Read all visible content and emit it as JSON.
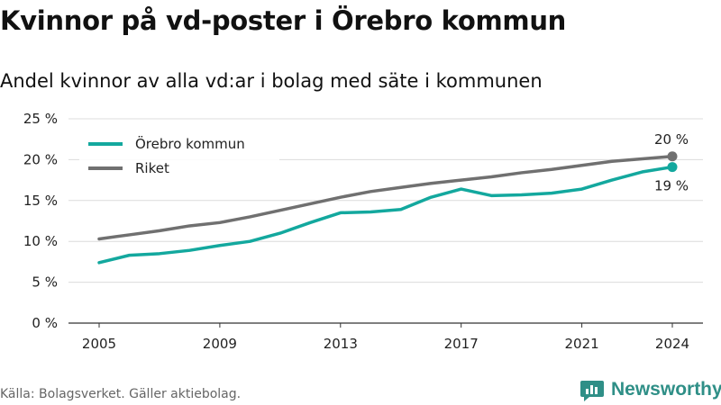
{
  "title": "Kvinnor på vd-poster i Örebro kommun",
  "subtitle": "Andel kvinnor av alla vd:ar i bolag med säte i kommunen",
  "source": "Källa: Bolagsverket. Gäller aktiebolag.",
  "brand": "Newsworthy",
  "chart_data": {
    "type": "line",
    "x": [
      2005,
      2006,
      2007,
      2008,
      2009,
      2010,
      2011,
      2012,
      2013,
      2014,
      2015,
      2016,
      2017,
      2018,
      2019,
      2020,
      2021,
      2022,
      2023,
      2024
    ],
    "xticks": [
      "2005",
      "2009",
      "2013",
      "2017",
      "2021",
      "2024"
    ],
    "yticks": [
      "0 %",
      "5 %",
      "10 %",
      "15 %",
      "20 %",
      "25 %"
    ],
    "ylim": [
      0,
      25
    ],
    "grid": true,
    "legend_position": "top-left",
    "series": [
      {
        "name": "Örebro kommun",
        "color": "#13a89e",
        "values": [
          7.4,
          8.3,
          8.5,
          8.9,
          9.5,
          10.0,
          11.0,
          12.3,
          13.5,
          13.6,
          13.9,
          15.4,
          16.4,
          15.6,
          15.7,
          15.9,
          16.4,
          17.5,
          18.5,
          19.1
        ],
        "end_label": "19 %"
      },
      {
        "name": "Riket",
        "color": "#707070",
        "values": [
          10.3,
          10.8,
          11.3,
          11.9,
          12.3,
          13.0,
          13.8,
          14.6,
          15.4,
          16.1,
          16.6,
          17.1,
          17.5,
          17.9,
          18.4,
          18.8,
          19.3,
          19.8,
          20.1,
          20.4
        ],
        "end_label": "20 %"
      }
    ]
  }
}
